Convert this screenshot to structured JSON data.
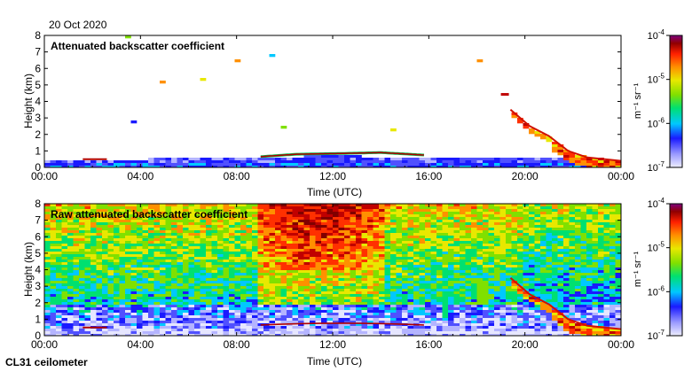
{
  "header": {
    "date": "20 Oct 2020"
  },
  "footer": {
    "instrument": "CL31 ceilometer"
  },
  "colorbar": {
    "unit": "m⁻¹ sr⁻¹",
    "ticks": [
      {
        "label": "10",
        "exp": "-4",
        "value": 0.0001
      },
      {
        "label": "10",
        "exp": "-5",
        "value": 1e-05
      },
      {
        "label": "10",
        "exp": "-6",
        "value": 1e-06
      },
      {
        "label": "10",
        "exp": "-7",
        "value": 1e-07
      }
    ]
  },
  "colors": {
    "scale": [
      "#e6e6ff",
      "#b4b4ff",
      "#5050ff",
      "#1a1aff",
      "#00c8ff",
      "#00e070",
      "#80e000",
      "#e8e800",
      "#ff9000",
      "#ff3000",
      "#c00000",
      "#800000",
      "#800080"
    ]
  },
  "chart_data": [
    {
      "type": "heatmap",
      "title": "Attenuated backscatter coefficient",
      "xlabel": "Time (UTC)",
      "ylabel": "Height (km)",
      "xlim": [
        0,
        24
      ],
      "ylim": [
        0,
        8
      ],
      "xticks": [
        {
          "value": 0,
          "label": "00:00"
        },
        {
          "value": 4,
          "label": "04:00"
        },
        {
          "value": 8,
          "label": "08:00"
        },
        {
          "value": 12,
          "label": "12:00"
        },
        {
          "value": 16,
          "label": "16:00"
        },
        {
          "value": 20,
          "label": "20:00"
        },
        {
          "value": 24,
          "label": "00:00"
        }
      ],
      "yticks": [
        0,
        1,
        2,
        3,
        4,
        5,
        6,
        7,
        8
      ],
      "clim": [
        1e-07,
        0.0001
      ],
      "features": {
        "boundary_layer_top_km": [
          [
            0,
            0.5
          ],
          [
            4,
            0.5
          ],
          [
            8,
            0.6
          ],
          [
            12,
            0.7
          ],
          [
            16,
            0.6
          ],
          [
            20,
            0.55
          ],
          [
            24,
            0.5
          ]
        ],
        "cloud_layer": {
          "t_start": 9.0,
          "t_end": 15.8,
          "height_km": [
            [
              9.0,
              0.65
            ],
            [
              10.5,
              0.8
            ],
            [
              12.5,
              0.85
            ],
            [
              14,
              0.9
            ],
            [
              15.8,
              0.75
            ]
          ]
        },
        "descending_plume": [
          [
            19.4,
            3.5
          ],
          [
            20.2,
            2.5
          ],
          [
            21.0,
            1.9
          ],
          [
            21.8,
            1.0
          ],
          [
            22.6,
            0.6
          ],
          [
            24,
            0.4
          ]
        ],
        "high_cloud": {
          "t": 19.0,
          "height_km": 4.4
        }
      }
    },
    {
      "type": "heatmap",
      "title": "Raw attenuated backscatter coefficient",
      "xlabel": "Time (UTC)",
      "ylabel": "Height (km)",
      "xlim": [
        0,
        24
      ],
      "ylim": [
        0,
        8
      ],
      "xticks": [
        {
          "value": 0,
          "label": "00:00"
        },
        {
          "value": 4,
          "label": "04:00"
        },
        {
          "value": 8,
          "label": "08:00"
        },
        {
          "value": 12,
          "label": "12:00"
        },
        {
          "value": 16,
          "label": "16:00"
        },
        {
          "value": 20,
          "label": "20:00"
        },
        {
          "value": 24,
          "label": "00:00"
        }
      ],
      "yticks": [
        0,
        1,
        2,
        3,
        4,
        5,
        6,
        7,
        8
      ],
      "clim": [
        1e-07,
        0.0001
      ],
      "features": {
        "noise_floor": "green-yellow above 2 km, red patch 09:00-14:00 above 4 km",
        "descending_plume": [
          [
            19.4,
            3.5
          ],
          [
            20.2,
            2.5
          ],
          [
            21.0,
            1.9
          ],
          [
            21.8,
            1.0
          ],
          [
            22.6,
            0.6
          ],
          [
            24,
            0.4
          ]
        ],
        "cloud_layer_km": 0.7
      }
    }
  ]
}
